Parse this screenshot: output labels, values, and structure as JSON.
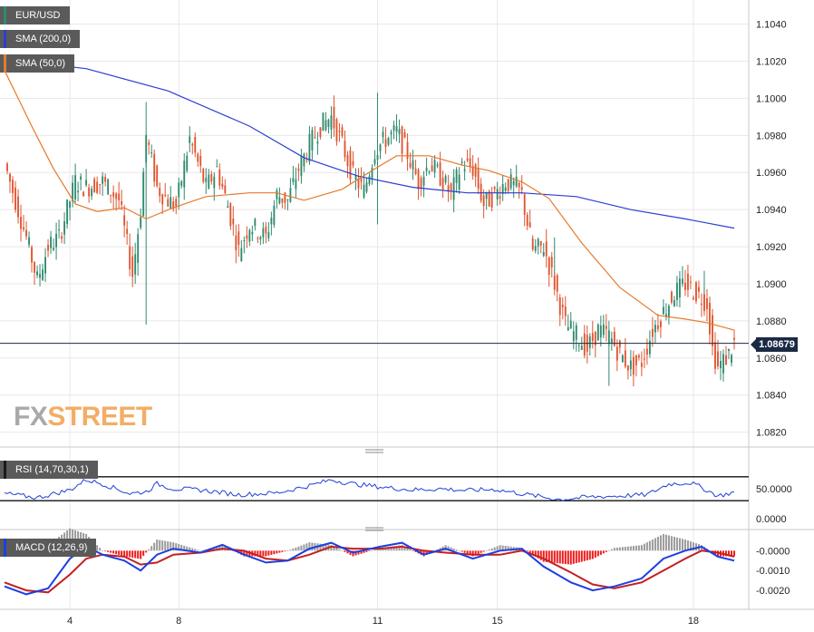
{
  "colors": {
    "up": "#2f8a6f",
    "down": "#e0542f",
    "sma200": "#2b3fd1",
    "sma50": "#e57a2c",
    "rsi": "#1f3fd4",
    "macd": "#1d3fe0",
    "signal": "#c42020",
    "hist_pos": "#9a9a9a",
    "hist_neg": "#ee1b1b",
    "grid": "#e8e8e8",
    "price_tag_bg": "#1a2a44"
  },
  "legends": {
    "main": "EUR/USD",
    "sma200": "SMA (200,0)",
    "sma50": "SMA (50,0)",
    "rsi": "RSI (14,70,30,1)",
    "macd": "MACD (12,26,9)"
  },
  "logo": {
    "fx": "FX",
    "street": "STREET"
  },
  "price_tag": "1.08679",
  "chart_data": [
    {
      "type": "candlestick",
      "title": "EUR/USD",
      "x_tick_labels": [
        "4",
        "8",
        "11",
        "15",
        "18"
      ],
      "y_ticks": [
        "1.1040",
        "1.1020",
        "1.1000",
        "1.0980",
        "1.0960",
        "1.0940",
        "1.0920",
        "1.0900",
        "1.0880",
        "1.0860",
        "1.0840",
        "1.0820"
      ],
      "ylim": [
        1.0812,
        1.1053
      ],
      "current_price": 1.08679,
      "price_anchors": [
        [
          0,
          1.0965
        ],
        [
          8,
          1.0925
        ],
        [
          12,
          1.0902
        ],
        [
          16,
          1.092
        ],
        [
          20,
          1.0925
        ],
        [
          26,
          1.0955
        ],
        [
          30,
          1.0952
        ],
        [
          36,
          1.0955
        ],
        [
          42,
          1.0945
        ],
        [
          47,
          1.0905
        ],
        [
          50,
          1.094
        ],
        [
          52,
          1.098
        ],
        [
          56,
          1.0952
        ],
        [
          60,
          1.0945
        ],
        [
          63,
          1.0942
        ],
        [
          68,
          1.0978
        ],
        [
          74,
          1.0952
        ],
        [
          78,
          1.0962
        ],
        [
          82,
          1.0942
        ],
        [
          86,
          1.0918
        ],
        [
          90,
          1.0932
        ],
        [
          96,
          1.0925
        ],
        [
          100,
          1.0948
        ],
        [
          104,
          1.0945
        ],
        [
          108,
          1.0962
        ],
        [
          112,
          1.0975
        ],
        [
          116,
          1.0985
        ],
        [
          120,
          1.099
        ],
        [
          124,
          1.0975
        ],
        [
          128,
          1.0958
        ],
        [
          132,
          1.095
        ],
        [
          136,
          1.0972
        ],
        [
          140,
          1.0978
        ],
        [
          144,
          1.0982
        ],
        [
          148,
          1.097
        ],
        [
          152,
          1.0955
        ],
        [
          156,
          1.0965
        ],
        [
          160,
          1.0958
        ],
        [
          164,
          1.0948
        ],
        [
          168,
          1.0965
        ],
        [
          172,
          1.0962
        ],
        [
          176,
          1.0943
        ],
        [
          180,
          1.0948
        ],
        [
          184,
          1.0955
        ],
        [
          188,
          1.0952
        ],
        [
          190,
          1.0948
        ],
        [
          194,
          1.0918
        ],
        [
          198,
          1.092
        ],
        [
          202,
          1.09
        ],
        [
          206,
          1.0878
        ],
        [
          210,
          1.0872
        ],
        [
          214,
          1.0865
        ],
        [
          218,
          1.0875
        ],
        [
          222,
          1.0872
        ],
        [
          226,
          1.0862
        ],
        [
          230,
          1.0855
        ],
        [
          234,
          1.0858
        ],
        [
          238,
          1.0875
        ],
        [
          242,
          1.0885
        ],
        [
          246,
          1.0895
        ],
        [
          250,
          1.09
        ],
        [
          254,
          1.0895
        ],
        [
          258,
          1.089
        ],
        [
          260,
          1.0865
        ],
        [
          262,
          1.0855
        ],
        [
          266,
          1.0862
        ],
        [
          268,
          1.0868
        ]
      ],
      "sma200_points": [
        [
          0,
          1.1021
        ],
        [
          30,
          1.1016
        ],
        [
          60,
          1.1004
        ],
        [
          90,
          1.0985
        ],
        [
          110,
          1.0968
        ],
        [
          130,
          1.0958
        ],
        [
          150,
          1.0952
        ],
        [
          170,
          1.0949
        ],
        [
          190,
          1.0949
        ],
        [
          210,
          1.0947
        ],
        [
          230,
          1.094
        ],
        [
          250,
          1.0935
        ],
        [
          268,
          1.093
        ]
      ],
      "sma50_points": [
        [
          0,
          1.1015
        ],
        [
          5,
          1.1
        ],
        [
          10,
          1.0985
        ],
        [
          18,
          1.0962
        ],
        [
          26,
          1.0943
        ],
        [
          34,
          1.0939
        ],
        [
          44,
          1.0941
        ],
        [
          52,
          1.0935
        ],
        [
          62,
          1.0941
        ],
        [
          74,
          1.0947
        ],
        [
          90,
          1.0949
        ],
        [
          100,
          1.0949
        ],
        [
          110,
          1.0945
        ],
        [
          124,
          1.0951
        ],
        [
          136,
          1.0962
        ],
        [
          144,
          1.0969
        ],
        [
          156,
          1.0969
        ],
        [
          168,
          1.0964
        ],
        [
          178,
          1.0961
        ],
        [
          190,
          1.0955
        ],
        [
          200,
          1.0946
        ],
        [
          212,
          1.0922
        ],
        [
          226,
          1.0898
        ],
        [
          240,
          1.0883
        ],
        [
          250,
          1.0881
        ],
        [
          258,
          1.0879
        ],
        [
          268,
          1.0875
        ]
      ]
    },
    {
      "type": "line",
      "title": "RSI (14,70,30,1)",
      "y_ticks": [
        "50.0000",
        "0.0000"
      ],
      "levels": [
        70,
        30
      ],
      "ylim": [
        0,
        100
      ],
      "points": [
        [
          0,
          42
        ],
        [
          12,
          35
        ],
        [
          24,
          48
        ],
        [
          30,
          65
        ],
        [
          36,
          58
        ],
        [
          46,
          42
        ],
        [
          52,
          45
        ],
        [
          56,
          58
        ],
        [
          62,
          50
        ],
        [
          72,
          48
        ],
        [
          86,
          40
        ],
        [
          100,
          43
        ],
        [
          112,
          55
        ],
        [
          120,
          65
        ],
        [
          128,
          58
        ],
        [
          140,
          52
        ],
        [
          150,
          48
        ],
        [
          160,
          50
        ],
        [
          170,
          47
        ],
        [
          180,
          49
        ],
        [
          192,
          40
        ],
        [
          204,
          32
        ],
        [
          214,
          36
        ],
        [
          226,
          38
        ],
        [
          236,
          40
        ],
        [
          244,
          58
        ],
        [
          252,
          60
        ],
        [
          256,
          52
        ],
        [
          262,
          38
        ],
        [
          268,
          44
        ]
      ]
    },
    {
      "type": "line",
      "title": "MACD (12,26,9)",
      "y_ticks": [
        "-0.0000",
        "-0.0010",
        "-0.0020"
      ],
      "ylim": [
        -0.0025,
        0.0007
      ],
      "macd_points": [
        [
          0,
          -0.0018
        ],
        [
          8,
          -0.0022
        ],
        [
          16,
          -0.0019
        ],
        [
          24,
          -0.0004
        ],
        [
          30,
          0.0002
        ],
        [
          36,
          -0.0002
        ],
        [
          44,
          -0.0005
        ],
        [
          50,
          -0.001
        ],
        [
          56,
          -0.0002
        ],
        [
          62,
          0.0001
        ],
        [
          72,
          -0.0001
        ],
        [
          80,
          0.0003
        ],
        [
          88,
          -0.0002
        ],
        [
          96,
          -0.0006
        ],
        [
          104,
          -0.0005
        ],
        [
          112,
          0.0001
        ],
        [
          120,
          0.0004
        ],
        [
          128,
          -0.0001
        ],
        [
          138,
          0.0002
        ],
        [
          146,
          0.0004
        ],
        [
          154,
          -0.0002
        ],
        [
          162,
          0.0001
        ],
        [
          172,
          -0.0004
        ],
        [
          182,
          0.0
        ],
        [
          190,
          0.0001
        ],
        [
          198,
          -0.0008
        ],
        [
          208,
          -0.0016
        ],
        [
          216,
          -0.002
        ],
        [
          224,
          -0.0018
        ],
        [
          234,
          -0.0014
        ],
        [
          242,
          -0.0004
        ],
        [
          250,
          0.0
        ],
        [
          256,
          0.0002
        ],
        [
          262,
          -0.0003
        ],
        [
          268,
          -0.0005
        ]
      ],
      "signal_points": [
        [
          0,
          -0.0016
        ],
        [
          8,
          -0.002
        ],
        [
          16,
          -0.0021
        ],
        [
          24,
          -0.0012
        ],
        [
          30,
          -0.0004
        ],
        [
          36,
          -0.0002
        ],
        [
          44,
          -0.0003
        ],
        [
          50,
          -0.0007
        ],
        [
          56,
          -0.0006
        ],
        [
          62,
          -0.0002
        ],
        [
          72,
          -0.0001
        ],
        [
          80,
          0.0001
        ],
        [
          88,
          0.0
        ],
        [
          96,
          -0.0004
        ],
        [
          104,
          -0.0005
        ],
        [
          112,
          -0.0002
        ],
        [
          120,
          0.0002
        ],
        [
          128,
          0.0001
        ],
        [
          138,
          0.0001
        ],
        [
          146,
          0.0002
        ],
        [
          154,
          0.0
        ],
        [
          162,
          -0.0001
        ],
        [
          172,
          -0.0002
        ],
        [
          182,
          -0.0002
        ],
        [
          190,
          0.0
        ],
        [
          198,
          -0.0004
        ],
        [
          208,
          -0.0011
        ],
        [
          216,
          -0.0017
        ],
        [
          224,
          -0.0019
        ],
        [
          234,
          -0.0016
        ],
        [
          242,
          -0.001
        ],
        [
          250,
          -0.0004
        ],
        [
          256,
          0.0
        ],
        [
          262,
          -0.0001
        ],
        [
          268,
          -0.0003
        ]
      ]
    }
  ]
}
